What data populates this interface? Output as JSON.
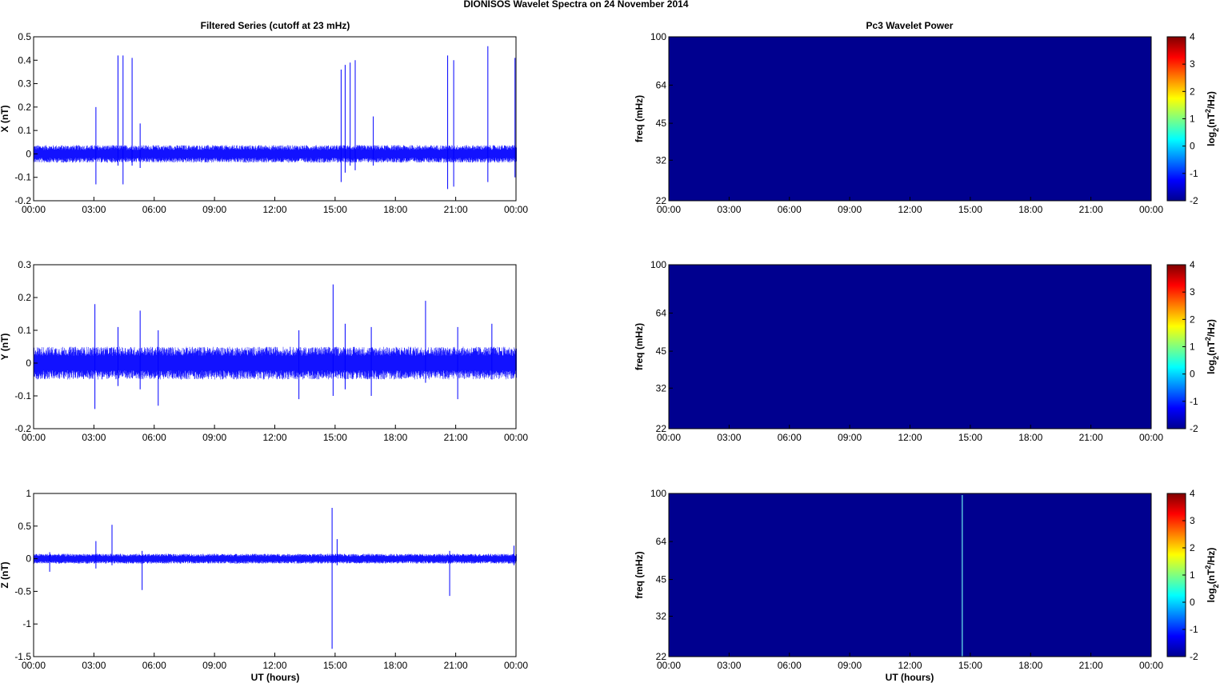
{
  "figure": {
    "title": "DIONISOS Wavelet Spectra on 24 November  2014",
    "left_column_title": "Filtered Series (cutoff at 23 mHz)",
    "right_column_title": "Pc3 Wavelet Power",
    "xlabel": "UT (hours)",
    "colors": {
      "trace": "#0000ff",
      "spectrogram_background": "#00008f",
      "axes": "#000000"
    }
  },
  "chart_data": [
    {
      "type": "line",
      "id": "x",
      "ylabel": "X (nT)",
      "x_ticks": [
        "00:00",
        "03:00",
        "06:00",
        "09:00",
        "12:00",
        "15:00",
        "18:00",
        "21:00",
        "00:00"
      ],
      "xlim_hours": [
        0,
        24
      ],
      "ylim": [
        -0.2,
        0.5
      ],
      "y_ticks": [
        "0.5",
        "0.4",
        "0.3",
        "0.2",
        "0.1",
        "0",
        "-0.1",
        "-0.2"
      ],
      "y_tick_values": [
        0.5,
        0.4,
        0.3,
        0.2,
        0.1,
        0,
        -0.1,
        -0.2
      ],
      "noise_amplitude": 0.03,
      "grid": false,
      "spikes": [
        {
          "t": 3.1,
          "hi": 0.2,
          "lo": -0.13
        },
        {
          "t": 4.2,
          "hi": 0.42,
          "lo": -0.05
        },
        {
          "t": 4.45,
          "hi": 0.42,
          "lo": -0.13
        },
        {
          "t": 4.9,
          "hi": 0.41,
          "lo": -0.05
        },
        {
          "t": 5.3,
          "hi": 0.13,
          "lo": -0.06
        },
        {
          "t": 15.3,
          "hi": 0.36,
          "lo": -0.12
        },
        {
          "t": 15.5,
          "hi": 0.38,
          "lo": -0.08
        },
        {
          "t": 15.75,
          "hi": 0.39,
          "lo": -0.05
        },
        {
          "t": 16.0,
          "hi": 0.4,
          "lo": -0.07
        },
        {
          "t": 16.9,
          "hi": 0.16,
          "lo": -0.05
        },
        {
          "t": 20.6,
          "hi": 0.42,
          "lo": -0.15
        },
        {
          "t": 20.9,
          "hi": 0.4,
          "lo": -0.14
        },
        {
          "t": 22.6,
          "hi": 0.46,
          "lo": -0.12
        },
        {
          "t": 23.95,
          "hi": 0.41,
          "lo": -0.1
        }
      ]
    },
    {
      "type": "line",
      "id": "y",
      "ylabel": "Y (nT)",
      "x_ticks": [
        "00:00",
        "03:00",
        "06:00",
        "09:00",
        "12:00",
        "15:00",
        "18:00",
        "21:00",
        "00:00"
      ],
      "xlim_hours": [
        0,
        24
      ],
      "ylim": [
        -0.2,
        0.3
      ],
      "y_ticks": [
        "0.3",
        "0.2",
        "0.1",
        "0",
        "-0.1",
        "-0.2"
      ],
      "y_tick_values": [
        0.3,
        0.2,
        0.1,
        0,
        -0.1,
        -0.2
      ],
      "noise_amplitude": 0.04,
      "grid": false,
      "spikes": [
        {
          "t": 3.05,
          "hi": 0.18,
          "lo": -0.14
        },
        {
          "t": 4.2,
          "hi": 0.11,
          "lo": -0.07
        },
        {
          "t": 5.3,
          "hi": 0.16,
          "lo": -0.08
        },
        {
          "t": 6.2,
          "hi": 0.1,
          "lo": -0.13
        },
        {
          "t": 13.2,
          "hi": 0.1,
          "lo": -0.11
        },
        {
          "t": 14.9,
          "hi": 0.24,
          "lo": -0.1
        },
        {
          "t": 15.5,
          "hi": 0.12,
          "lo": -0.08
        },
        {
          "t": 16.8,
          "hi": 0.11,
          "lo": -0.1
        },
        {
          "t": 19.5,
          "hi": 0.19,
          "lo": -0.06
        },
        {
          "t": 21.1,
          "hi": 0.11,
          "lo": -0.11
        },
        {
          "t": 22.8,
          "hi": 0.12,
          "lo": -0.05
        }
      ]
    },
    {
      "type": "line",
      "id": "z",
      "ylabel": "Z (nT)",
      "x_ticks": [
        "00:00",
        "03:00",
        "06:00",
        "09:00",
        "12:00",
        "15:00",
        "18:00",
        "21:00",
        "00:00"
      ],
      "xlim_hours": [
        0,
        24
      ],
      "ylim": [
        -1.5,
        1
      ],
      "y_ticks": [
        "1",
        "0.5",
        "0",
        "-0.5",
        "-1",
        "-1.5"
      ],
      "y_tick_values": [
        1,
        0.5,
        0,
        -0.5,
        -1,
        -1.5
      ],
      "noise_amplitude": 0.06,
      "grid": false,
      "spikes": [
        {
          "t": 0.8,
          "hi": 0.1,
          "lo": -0.2
        },
        {
          "t": 3.1,
          "hi": 0.27,
          "lo": -0.15
        },
        {
          "t": 3.9,
          "hi": 0.52,
          "lo": -0.1
        },
        {
          "t": 5.4,
          "hi": 0.12,
          "lo": -0.48
        },
        {
          "t": 14.85,
          "hi": 0.78,
          "lo": -1.38
        },
        {
          "t": 15.1,
          "hi": 0.3,
          "lo": -0.1
        },
        {
          "t": 20.7,
          "hi": 0.12,
          "lo": -0.57
        },
        {
          "t": 23.9,
          "hi": 0.2,
          "lo": -0.1
        }
      ]
    },
    {
      "type": "heatmap",
      "id": "spec-x",
      "ylabel": "freq (mHz)",
      "y_ticks": [
        "100",
        "64",
        "45",
        "32",
        "22"
      ],
      "y_tick_values": [
        100,
        64,
        45,
        32,
        22
      ],
      "y_scale": "log",
      "x_ticks": [
        "00:00",
        "03:00",
        "06:00",
        "09:00",
        "12:00",
        "15:00",
        "18:00",
        "21:00",
        "00:00"
      ],
      "colorbar_label": "log2(nT2/Hz)",
      "colorbar_ticks": [
        "4",
        "3",
        "2",
        "1",
        "0",
        "-1",
        "-2"
      ],
      "clim": [
        -2,
        4
      ],
      "value": "uniform minimum (-2)",
      "streaks": []
    },
    {
      "type": "heatmap",
      "id": "spec-y",
      "ylabel": "freq (mHz)",
      "y_ticks": [
        "100",
        "64",
        "45",
        "32",
        "22"
      ],
      "y_tick_values": [
        100,
        64,
        45,
        32,
        22
      ],
      "y_scale": "log",
      "x_ticks": [
        "00:00",
        "03:00",
        "06:00",
        "09:00",
        "12:00",
        "15:00",
        "18:00",
        "21:00",
        "00:00"
      ],
      "colorbar_label": "log2(nT2/Hz)",
      "colorbar_ticks": [
        "4",
        "3",
        "2",
        "1",
        "0",
        "-1",
        "-2"
      ],
      "clim": [
        -2,
        4
      ],
      "value": "uniform minimum (-2)",
      "streaks": []
    },
    {
      "type": "heatmap",
      "id": "spec-z",
      "ylabel": "freq (mHz)",
      "y_ticks": [
        "100",
        "64",
        "45",
        "32",
        "22"
      ],
      "y_tick_values": [
        100,
        64,
        45,
        32,
        22
      ],
      "y_scale": "log",
      "x_ticks": [
        "00:00",
        "03:00",
        "06:00",
        "09:00",
        "12:00",
        "15:00",
        "18:00",
        "21:00",
        "00:00"
      ],
      "xlabel": "UT (hours)",
      "colorbar_label": "log2(nT2/Hz)",
      "colorbar_ticks": [
        "4",
        "3",
        "2",
        "1",
        "0",
        "-1",
        "-2"
      ],
      "clim": [
        -2,
        4
      ],
      "value": "uniform minimum (-2) with a brief streak",
      "streaks": [
        {
          "t": 14.6,
          "color": "#6cf0f0"
        }
      ]
    }
  ]
}
